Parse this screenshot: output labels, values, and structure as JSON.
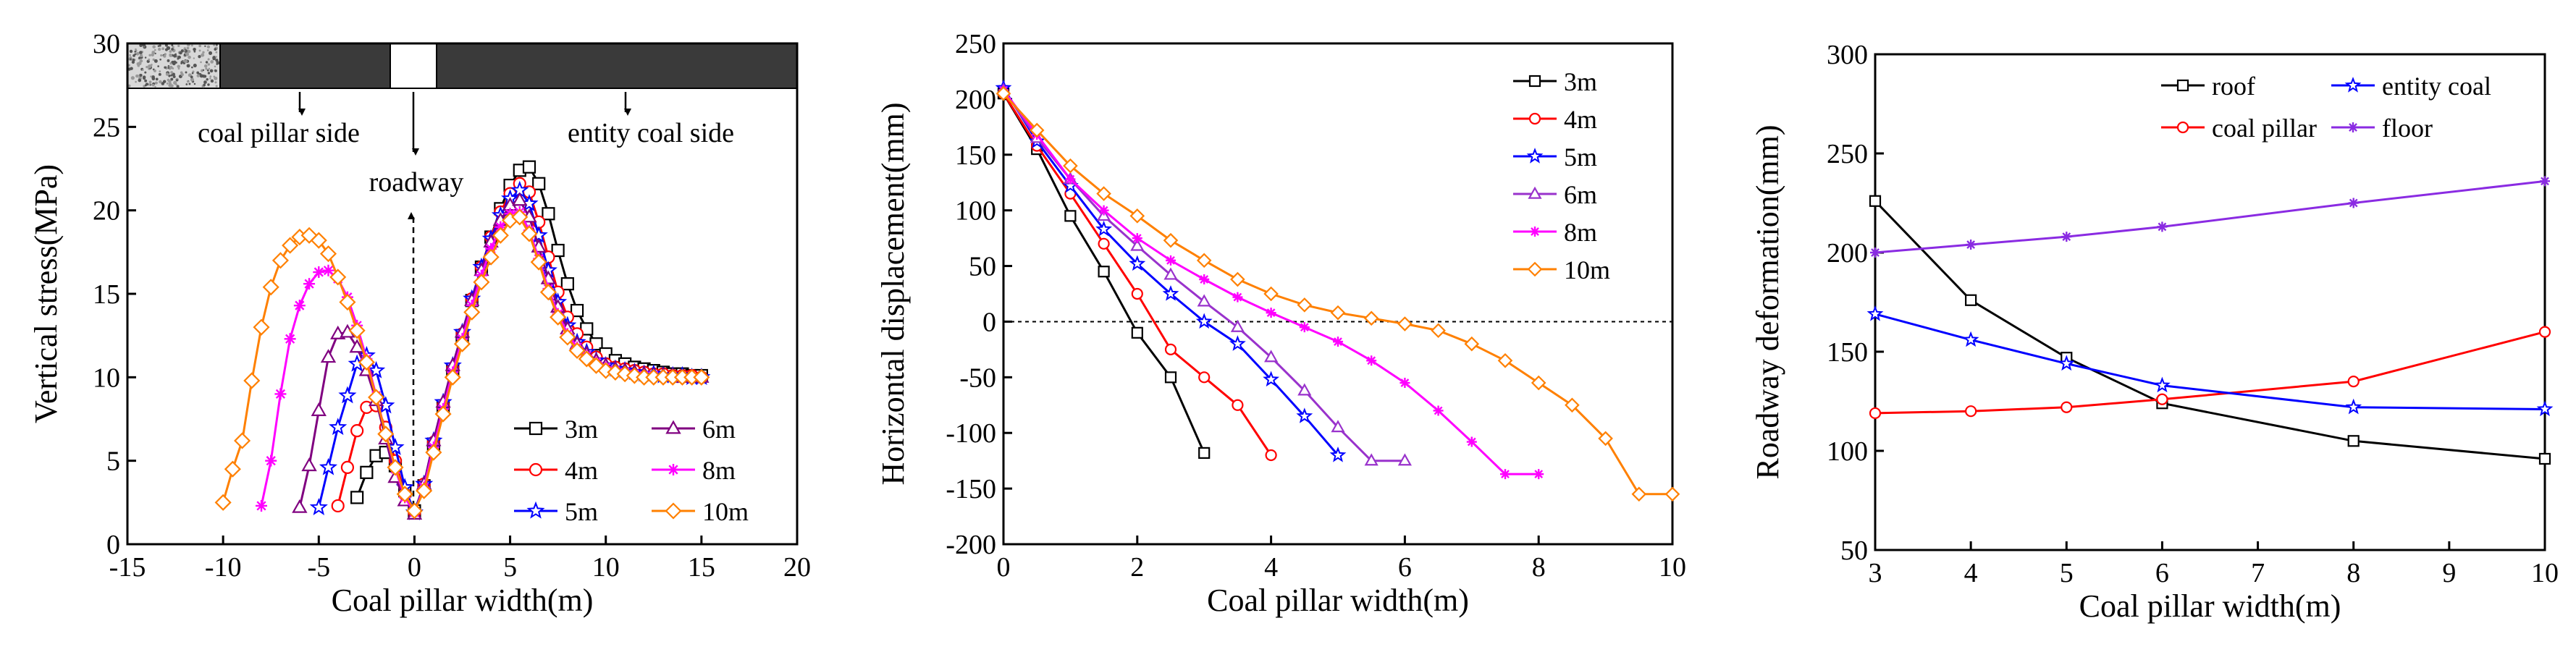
{
  "chart_data": [
    {
      "type": "line",
      "title": "",
      "xlabel": "Coal pillar width(m)",
      "ylabel": "Vertical stress(MPa)",
      "xlim": [
        -15,
        20
      ],
      "ylim": [
        0,
        30
      ],
      "xticks": [
        -15,
        -10,
        -5,
        0,
        5,
        10,
        15,
        20
      ],
      "yticks": [
        0,
        5,
        10,
        15,
        20,
        25,
        30
      ],
      "legend": "bottom-right, two columns",
      "annotations": [
        "coal pillar side",
        "entity coal side",
        "roadway"
      ],
      "series": [
        {
          "name": "3m",
          "color": "#000000",
          "marker": "square",
          "x": [
            -3,
            -2.5,
            -2,
            -1.5,
            -1,
            -0.5,
            0,
            0.5,
            1,
            1.5,
            2,
            2.5,
            3,
            3.5,
            4,
            4.5,
            5,
            5.5,
            6,
            6.5,
            7,
            7.5,
            8,
            8.5,
            9,
            9.5,
            10,
            10.5,
            11,
            11.5,
            12,
            12.5,
            13,
            13.5,
            14,
            14.5,
            15
          ],
          "y": [
            2.8,
            4.3,
            5.3,
            5.5,
            4.7,
            3.2,
            2.0,
            3.5,
            6.0,
            8.2,
            10.4,
            12.5,
            14.6,
            16.6,
            18.4,
            20.1,
            21.5,
            22.4,
            22.6,
            21.6,
            19.8,
            17.6,
            15.6,
            14.0,
            12.9,
            12.0,
            11.4,
            11.0,
            10.8,
            10.6,
            10.5,
            10.4,
            10.3,
            10.2,
            10.2,
            10.1,
            10.1
          ]
        },
        {
          "name": "4m",
          "color": "#ff0000",
          "marker": "circle",
          "x": [
            -4,
            -3.5,
            -3,
            -2.5,
            -2,
            -1.5,
            -1,
            -0.5,
            0,
            0.5,
            1,
            1.5,
            2,
            2.5,
            3,
            3.5,
            4,
            4.5,
            5,
            5.5,
            6,
            6.5,
            7,
            7.5,
            8,
            8.5,
            9,
            9.5,
            10,
            10.5,
            11,
            11.5,
            12,
            12.5,
            13,
            13.5,
            14,
            14.5,
            15
          ],
          "y": [
            2.3,
            4.6,
            6.8,
            8.2,
            8.3,
            7.0,
            5.0,
            3.0,
            1.9,
            3.6,
            6.1,
            8.3,
            10.5,
            12.6,
            14.7,
            16.6,
            18.4,
            19.9,
            21.0,
            21.6,
            21.1,
            19.3,
            17.2,
            15.1,
            13.6,
            12.6,
            11.8,
            11.2,
            10.8,
            10.6,
            10.5,
            10.4,
            10.3,
            10.2,
            10.2,
            10.1,
            10.1,
            10.1,
            10.0
          ]
        },
        {
          "name": "5m",
          "color": "#0000ff",
          "marker": "star",
          "x": [
            -5,
            -4.5,
            -4,
            -3.5,
            -3,
            -2.5,
            -2,
            -1.5,
            -1,
            -0.5,
            0,
            0.5,
            1,
            1.5,
            2,
            2.5,
            3,
            3.5,
            4,
            4.5,
            5,
            5.5,
            6,
            6.5,
            7,
            7.5,
            8,
            8.5,
            9,
            9.5,
            10,
            10.5,
            11,
            11.5,
            12,
            12.5,
            13,
            13.5,
            14,
            14.5,
            15
          ],
          "y": [
            2.2,
            4.6,
            7.0,
            8.9,
            10.8,
            11.3,
            10.4,
            8.3,
            5.8,
            3.4,
            1.9,
            3.6,
            6.2,
            8.5,
            10.7,
            12.7,
            14.7,
            16.6,
            18.3,
            19.7,
            20.7,
            21.2,
            20.4,
            18.5,
            16.4,
            14.5,
            13.1,
            12.1,
            11.5,
            11.0,
            10.7,
            10.5,
            10.4,
            10.3,
            10.2,
            10.2,
            10.1,
            10.1,
            10.1,
            10.0,
            10.0
          ]
        },
        {
          "name": "6m",
          "color": "#800080",
          "marker": "triangle",
          "x": [
            -6,
            -5.5,
            -5,
            -4.5,
            -4,
            -3.5,
            -3,
            -2.5,
            -2,
            -1.5,
            -1,
            -0.5,
            0,
            0.5,
            1,
            1.5,
            2,
            2.5,
            3,
            3.5,
            4,
            4.5,
            5,
            5.5,
            6,
            6.5,
            7,
            7.5,
            8,
            8.5,
            9,
            9.5,
            10,
            10.5,
            11,
            11.5,
            12,
            12.5,
            13,
            13.5,
            14,
            14.5,
            15
          ],
          "y": [
            2.2,
            4.7,
            8.0,
            11.2,
            12.6,
            12.7,
            11.8,
            10.4,
            8.6,
            6.3,
            4.0,
            2.6,
            1.8,
            3.6,
            6.2,
            8.5,
            10.7,
            12.7,
            14.6,
            16.4,
            18.1,
            19.4,
            20.3,
            20.6,
            19.6,
            17.8,
            15.9,
            14.2,
            12.9,
            12.0,
            11.4,
            11.0,
            10.7,
            10.5,
            10.4,
            10.3,
            10.2,
            10.1,
            10.1,
            10.1,
            10.0,
            10.0,
            10.0
          ]
        },
        {
          "name": "8m",
          "color": "#ff00ff",
          "marker": "asterisk",
          "x": [
            -8,
            -7.5,
            -7,
            -6.5,
            -6,
            -5.5,
            -5,
            -4.5,
            -4,
            -3.5,
            -3,
            -2.5,
            -2,
            -1.5,
            -1,
            -0.5,
            0,
            0.5,
            1,
            1.5,
            2,
            2.5,
            3,
            3.5,
            4,
            4.5,
            5,
            5.5,
            6,
            6.5,
            7,
            7.5,
            8,
            8.5,
            9,
            9.5,
            10,
            10.5,
            11,
            11.5,
            12,
            12.5,
            13,
            13.5,
            14,
            14.5,
            15
          ],
          "y": [
            2.3,
            5.0,
            9.0,
            12.3,
            14.3,
            15.6,
            16.3,
            16.4,
            15.9,
            14.8,
            13.1,
            11.1,
            8.9,
            6.6,
            4.5,
            2.8,
            1.9,
            3.4,
            5.8,
            8.1,
            10.3,
            12.3,
            14.3,
            16.1,
            17.7,
            19.0,
            19.8,
            19.9,
            18.8,
            17.1,
            15.3,
            13.8,
            12.6,
            11.8,
            11.3,
            10.9,
            10.6,
            10.4,
            10.3,
            10.2,
            10.1,
            10.1,
            10.0,
            10.0,
            10.0,
            10.0,
            10.0
          ]
        },
        {
          "name": "10m",
          "color": "#ff8000",
          "marker": "diamond",
          "x": [
            -10,
            -9.5,
            -9,
            -8.5,
            -8,
            -7.5,
            -7,
            -6.5,
            -6,
            -5.5,
            -5,
            -4.5,
            -4,
            -3.5,
            -3,
            -2.5,
            -2,
            -1.5,
            -1,
            -0.5,
            0,
            0.5,
            1,
            1.5,
            2,
            2.5,
            3,
            3.5,
            4,
            4.5,
            5,
            5.5,
            6,
            6.5,
            7,
            7.5,
            8,
            8.5,
            9,
            9.5,
            10,
            10.5,
            11,
            11.5,
            12,
            12.5,
            13,
            13.5,
            14,
            14.5,
            15
          ],
          "y": [
            2.5,
            4.5,
            6.2,
            9.8,
            13.0,
            15.4,
            17.0,
            17.9,
            18.4,
            18.5,
            18.2,
            17.4,
            16.0,
            14.5,
            12.8,
            10.9,
            8.8,
            6.6,
            4.6,
            3.0,
            2.0,
            3.2,
            5.5,
            7.8,
            10.0,
            12.0,
            13.9,
            15.7,
            17.2,
            18.5,
            19.4,
            19.6,
            18.6,
            16.9,
            15.1,
            13.6,
            12.4,
            11.6,
            11.1,
            10.7,
            10.4,
            10.3,
            10.2,
            10.1,
            10.0,
            10.0,
            10.0,
            10.0,
            10.0,
            10.0,
            10.0
          ]
        }
      ]
    },
    {
      "type": "line",
      "title": "",
      "xlabel": "Coal pillar width(m)",
      "ylabel": "Horizontal displacement(mm)",
      "xlim": [
        0,
        10
      ],
      "ylim": [
        -200,
        250
      ],
      "xticks": [
        0,
        2,
        4,
        6,
        8,
        10
      ],
      "yticks": [
        -200,
        -150,
        -100,
        -50,
        0,
        50,
        100,
        150,
        200,
        250
      ],
      "legend": "top-right",
      "series": [
        {
          "name": "3m",
          "color": "#000000",
          "marker": "square",
          "x": [
            0,
            0.5,
            1,
            1.5,
            2,
            2.5,
            3
          ],
          "y": [
            205,
            155,
            95,
            45,
            -10,
            -50,
            -118
          ]
        },
        {
          "name": "4m",
          "color": "#ff0000",
          "marker": "circle",
          "x": [
            0,
            0.5,
            1,
            1.5,
            2,
            2.5,
            3,
            3.5,
            4
          ],
          "y": [
            205,
            158,
            115,
            70,
            25,
            -25,
            -50,
            -75,
            -120
          ]
        },
        {
          "name": "5m",
          "color": "#0000ff",
          "marker": "star",
          "x": [
            0,
            0.5,
            1,
            1.5,
            2,
            2.5,
            3,
            3.5,
            4,
            4.5,
            5
          ],
          "y": [
            210,
            162,
            122,
            83,
            52,
            25,
            0,
            -20,
            -52,
            -85,
            -120
          ]
        },
        {
          "name": "6m",
          "color": "#9932cc",
          "marker": "triangle",
          "x": [
            0,
            0.5,
            1,
            1.5,
            2,
            2.5,
            3,
            3.5,
            4,
            4.5,
            5,
            5.5,
            6
          ],
          "y": [
            208,
            165,
            128,
            95,
            68,
            42,
            18,
            -5,
            -32,
            -62,
            -95,
            -125,
            -125
          ]
        },
        {
          "name": "8m",
          "color": "#ff00ff",
          "marker": "asterisk",
          "x": [
            0,
            0.5,
            1,
            1.5,
            2,
            2.5,
            3,
            3.5,
            4,
            4.5,
            5,
            5.5,
            6,
            6.5,
            7,
            7.5,
            8
          ],
          "y": [
            208,
            168,
            128,
            100,
            75,
            55,
            38,
            22,
            8,
            -5,
            -18,
            -35,
            -55,
            -80,
            -108,
            -137,
            -137
          ]
        },
        {
          "name": "10m",
          "color": "#ff8000",
          "marker": "diamond",
          "x": [
            0,
            0.5,
            1,
            1.5,
            2,
            2.5,
            3,
            3.5,
            4,
            4.5,
            5,
            5.5,
            6,
            6.5,
            7,
            7.5,
            8,
            8.5,
            9,
            9.5,
            10
          ],
          "y": [
            205,
            172,
            140,
            115,
            95,
            73,
            55,
            38,
            25,
            15,
            8,
            3,
            -2,
            -8,
            -20,
            -35,
            -55,
            -75,
            -105,
            -155,
            -155
          ]
        }
      ]
    },
    {
      "type": "line",
      "title": "",
      "xlabel": "Coal pillar width(m)",
      "ylabel": "Roadway deformation(mm)",
      "xlim": [
        3,
        10
      ],
      "ylim": [
        50,
        300
      ],
      "xticks": [
        3,
        4,
        5,
        6,
        7,
        8,
        9,
        10
      ],
      "yticks": [
        50,
        100,
        150,
        200,
        250,
        300
      ],
      "legend": "top-right, two columns",
      "series": [
        {
          "name": "roof",
          "color": "#000000",
          "marker": "square",
          "x": [
            3,
            4,
            5,
            6,
            8,
            10
          ],
          "y": [
            226,
            176,
            147,
            124,
            105,
            96
          ]
        },
        {
          "name": "coal pillar",
          "color": "#ff0000",
          "marker": "circle",
          "x": [
            3,
            4,
            5,
            6,
            8,
            10
          ],
          "y": [
            119,
            120,
            122,
            126,
            135,
            160
          ]
        },
        {
          "name": "entity coal",
          "color": "#0000ff",
          "marker": "star",
          "x": [
            3,
            4,
            5,
            6,
            8,
            10
          ],
          "y": [
            169,
            156,
            144,
            133,
            122,
            121
          ]
        },
        {
          "name": "floor",
          "color": "#8a2be2",
          "marker": "asterisk",
          "x": [
            3,
            4,
            5,
            6,
            8,
            10
          ],
          "y": [
            200,
            204,
            208,
            213,
            225,
            236
          ]
        }
      ]
    }
  ]
}
